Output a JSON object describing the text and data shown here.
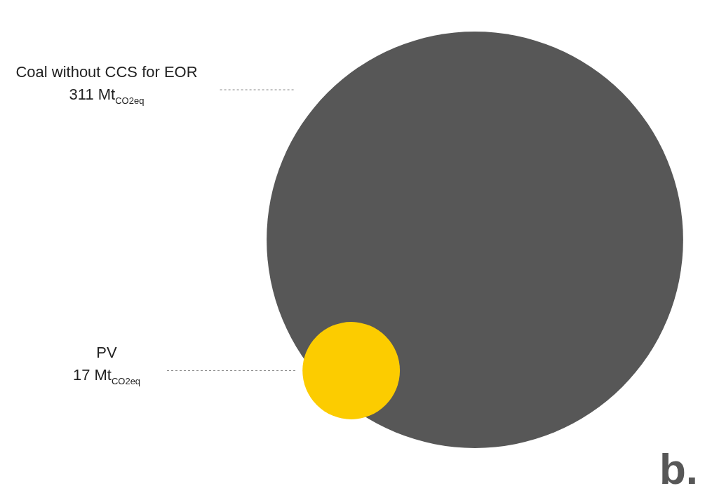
{
  "chart_data": {
    "type": "other",
    "categories": [
      "Coal without CCS for EOR",
      "PV"
    ],
    "values": [
      311,
      17
    ],
    "value_labels": [
      "311 Mt$_{CO2eq}$",
      "17 Mt$_{CO2eq}$"
    ],
    "colors": [
      "#575757",
      "#fccc00"
    ],
    "annotations": [
      "b."
    ]
  }
}
